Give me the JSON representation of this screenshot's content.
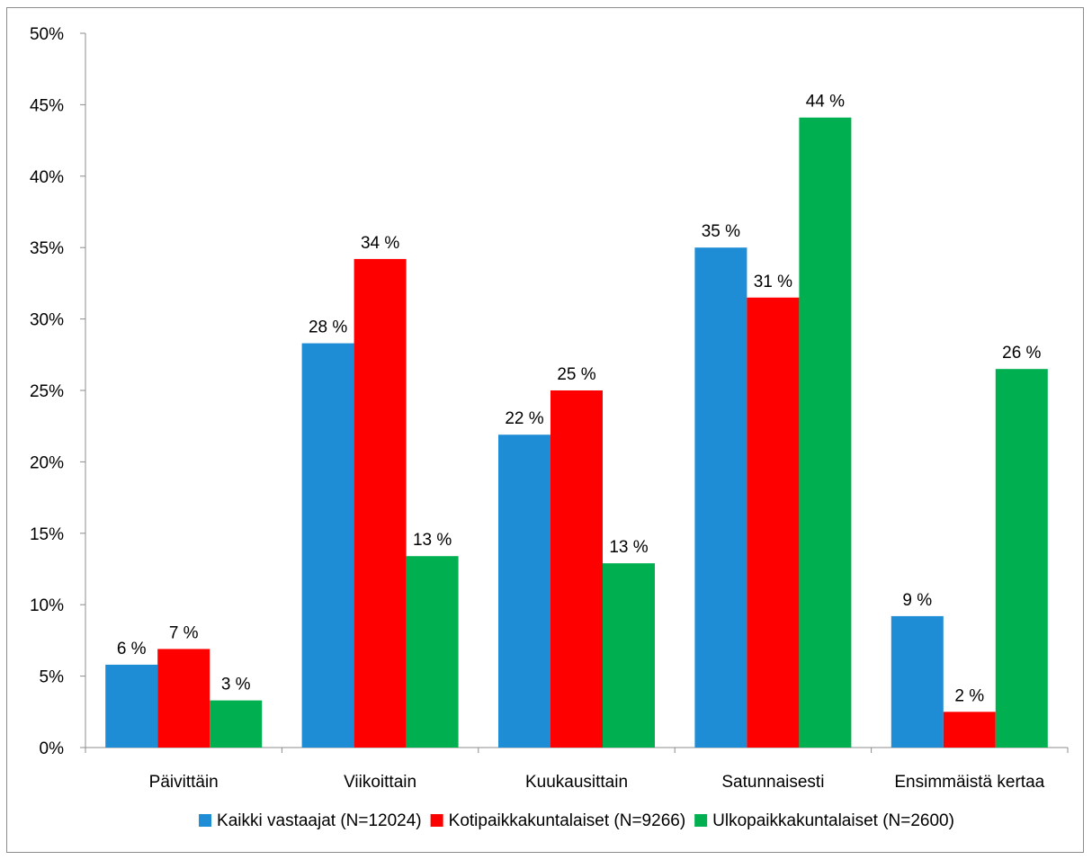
{
  "chart_data": {
    "type": "bar",
    "categories": [
      "Päivittäin",
      "Viikoittain",
      "Kuukausittain",
      "Satunnaisesti",
      "Ensimmäistä kertaa"
    ],
    "series": [
      {
        "name": "Kaikki vastaajat (N=12024)",
        "color": "#1f8dd6",
        "values": [
          5.8,
          28.3,
          21.9,
          35.0,
          9.2
        ],
        "labels": [
          "6 %",
          "28 %",
          "22 %",
          "35 %",
          "9 %"
        ]
      },
      {
        "name": "Kotipaikkakuntalaiset (N=9266)",
        "color": "#ff0000",
        "values": [
          6.9,
          34.2,
          25.0,
          31.5,
          2.5
        ],
        "labels": [
          "7 %",
          "34 %",
          "25 %",
          "31 %",
          "2 %"
        ]
      },
      {
        "name": "Ulkopaikkakuntalaiset (N=2600)",
        "color": "#00b050",
        "values": [
          3.3,
          13.4,
          12.9,
          44.1,
          26.5
        ],
        "labels": [
          "3 %",
          "13 %",
          "13 %",
          "44 %",
          "26 %"
        ]
      }
    ],
    "ylim": [
      0,
      50
    ],
    "yticks": [
      0,
      5,
      10,
      15,
      20,
      25,
      30,
      35,
      40,
      45,
      50
    ],
    "ytick_labels": [
      "0%",
      "5%",
      "10%",
      "15%",
      "20%",
      "25%",
      "30%",
      "35%",
      "40%",
      "45%",
      "50%"
    ],
    "grid": false,
    "legend_position": "bottom"
  }
}
